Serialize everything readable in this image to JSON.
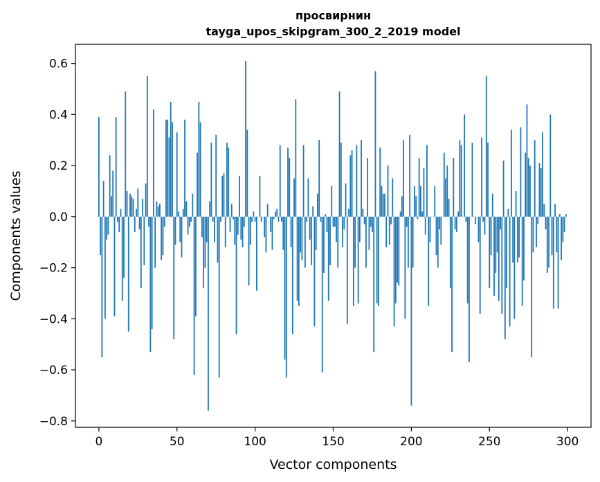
{
  "chart_data": {
    "type": "bar",
    "title": "просвирнин",
    "subtitle": "tayga_upos_skipgram_300_2_2019 model",
    "xlabel": "Vector components",
    "ylabel": "Components values",
    "xlim": [
      -15,
      315
    ],
    "ylim": [
      -0.825,
      0.675
    ],
    "xticks": [
      0,
      50,
      100,
      150,
      200,
      250,
      300
    ],
    "xtick_labels": [
      "0",
      "50",
      "100",
      "150",
      "200",
      "250",
      "300"
    ],
    "yticks": [
      -0.8,
      -0.6,
      -0.4,
      -0.2,
      0.0,
      0.2,
      0.4,
      0.6
    ],
    "ytick_labels": [
      "−0.8",
      "−0.6",
      "−0.4",
      "−0.2",
      "0.0",
      "0.2",
      "0.4",
      "0.6"
    ],
    "grid": false,
    "bar_color": "#1f77b4",
    "x": [
      0,
      1,
      2,
      3,
      4,
      5,
      6,
      7,
      8,
      9,
      10,
      11,
      12,
      13,
      14,
      15,
      16,
      17,
      18,
      19,
      20,
      21,
      22,
      23,
      24,
      25,
      26,
      27,
      28,
      29,
      30,
      31,
      32,
      33,
      34,
      35,
      36,
      37,
      38,
      39,
      40,
      41,
      42,
      43,
      44,
      45,
      46,
      47,
      48,
      49,
      50,
      51,
      52,
      53,
      54,
      55,
      56,
      57,
      58,
      59,
      60,
      61,
      62,
      63,
      64,
      65,
      66,
      67,
      68,
      69,
      70,
      71,
      72,
      73,
      74,
      75,
      76,
      77,
      78,
      79,
      80,
      81,
      82,
      83,
      84,
      85,
      86,
      87,
      88,
      89,
      90,
      91,
      92,
      93,
      94,
      95,
      96,
      97,
      98,
      99,
      100,
      101,
      102,
      103,
      104,
      105,
      106,
      107,
      108,
      109,
      110,
      111,
      112,
      113,
      114,
      115,
      116,
      117,
      118,
      119,
      120,
      121,
      122,
      123,
      124,
      125,
      126,
      127,
      128,
      129,
      130,
      131,
      132,
      133,
      134,
      135,
      136,
      137,
      138,
      139,
      140,
      141,
      142,
      143,
      144,
      145,
      146,
      147,
      148,
      149,
      150,
      151,
      152,
      153,
      154,
      155,
      156,
      157,
      158,
      159,
      160,
      161,
      162,
      163,
      164,
      165,
      166,
      167,
      168,
      169,
      170,
      171,
      172,
      173,
      174,
      175,
      176,
      177,
      178,
      179,
      180,
      181,
      182,
      183,
      184,
      185,
      186,
      187,
      188,
      189,
      190,
      191,
      192,
      193,
      194,
      195,
      196,
      197,
      198,
      199,
      200,
      201,
      202,
      203,
      204,
      205,
      206,
      207,
      208,
      209,
      210,
      211,
      212,
      213,
      214,
      215,
      216,
      217,
      218,
      219,
      220,
      221,
      222,
      223,
      224,
      225,
      226,
      227,
      228,
      229,
      230,
      231,
      232,
      233,
      234,
      235,
      236,
      237,
      238,
      239,
      240,
      241,
      242,
      243,
      244,
      245,
      246,
      247,
      248,
      249,
      250,
      251,
      252,
      253,
      254,
      255,
      256,
      257,
      258,
      259,
      260,
      261,
      262,
      263,
      264,
      265,
      266,
      267,
      268,
      269,
      270,
      271,
      272,
      273,
      274,
      275,
      276,
      277,
      278,
      279,
      280,
      281,
      282,
      283,
      284,
      285,
      286,
      287,
      288,
      289,
      290,
      291,
      292,
      293,
      294,
      295,
      296,
      297,
      298,
      299
    ],
    "values": [
      0.39,
      -0.15,
      -0.55,
      0.14,
      -0.4,
      -0.09,
      -0.07,
      0.24,
      0.08,
      0.18,
      -0.39,
      0.39,
      -0.02,
      -0.06,
      0.03,
      -0.33,
      -0.24,
      0.49,
      0.1,
      -0.45,
      0.09,
      0.08,
      0.07,
      -0.06,
      0.03,
      0.11,
      -0.05,
      -0.28,
      0.07,
      -0.19,
      0.13,
      0.55,
      -0.04,
      -0.53,
      -0.44,
      0.42,
      -0.2,
      0.06,
      0.04,
      0.05,
      -0.17,
      -0.15,
      -0.04,
      0.38,
      0.38,
      0.31,
      0.45,
      0.37,
      -0.48,
      -0.11,
      0.33,
      0.02,
      -0.1,
      -0.16,
      0.03,
      0.38,
      0.06,
      -0.07,
      -0.04,
      -0.02,
      0.09,
      -0.62,
      -0.39,
      0.25,
      0.45,
      0.37,
      -0.08,
      -0.28,
      -0.2,
      -0.1,
      -0.76,
      0.06,
      0.29,
      -0.02,
      -0.1,
      0.32,
      -0.18,
      -0.63,
      -0.02,
      0.16,
      0.17,
      -0.12,
      0.29,
      0.27,
      -0.06,
      0.05,
      -0.01,
      -0.11,
      -0.46,
      -0.07,
      0.16,
      -0.09,
      -0.12,
      -0.04,
      0.61,
      0.34,
      -0.27,
      -0.11,
      -0.02,
      0.02,
      -0.02,
      -0.29,
      0.0,
      0.16,
      -0.02,
      0.0,
      -0.08,
      -0.14,
      0.05,
      0.0,
      -0.06,
      -0.13,
      -0.01,
      0.02,
      0.03,
      -0.02,
      0.28,
      -0.02,
      -0.13,
      -0.56,
      -0.63,
      0.27,
      0.23,
      -0.12,
      -0.46,
      0.15,
      0.46,
      -0.33,
      -0.35,
      -0.14,
      -0.17,
      0.28,
      -0.2,
      -0.02,
      0.15,
      -0.09,
      -0.19,
      0.04,
      -0.43,
      -0.13,
      0.09,
      0.3,
      -0.02,
      -0.61,
      -0.22,
      0.01,
      -0.06,
      -0.33,
      -0.19,
      0.12,
      -0.04,
      -0.04,
      -0.1,
      -0.2,
      0.49,
      0.29,
      -0.12,
      -0.05,
      0.13,
      -0.42,
      0.03,
      0.24,
      0.26,
      -0.35,
      -0.2,
      0.28,
      -0.34,
      -0.1,
      0.3,
      0.03,
      -0.03,
      -0.2,
      0.23,
      -0.13,
      -0.04,
      -0.06,
      -0.53,
      0.57,
      -0.34,
      -0.35,
      0.27,
      0.12,
      0.09,
      0.09,
      -0.12,
      0.2,
      -0.11,
      -0.03,
      0.15,
      -0.43,
      -0.34,
      -0.26,
      -0.27,
      0.02,
      0.08,
      0.3,
      -0.4,
      -0.04,
      -0.2,
      0.32,
      -0.74,
      -0.2,
      0.12,
      0.08,
      -0.01,
      0.23,
      0.12,
      0.02,
      0.19,
      -0.07,
      0.28,
      -0.35,
      -0.1,
      0.0,
      0.0,
      0.12,
      -0.15,
      -0.2,
      -0.05,
      -0.11,
      0.0,
      0.25,
      0.15,
      0.2,
      0.07,
      -0.28,
      -0.53,
      0.23,
      -0.05,
      -0.06,
      0.02,
      0.3,
      0.28,
      0.0,
      0.4,
      -0.02,
      -0.34,
      -0.57,
      0.0,
      0.29,
      0.0,
      -0.03,
      0.0,
      -0.1,
      -0.38,
      0.31,
      -0.02,
      -0.07,
      0.55,
      0.29,
      -0.28,
      -0.15,
      0.09,
      -0.31,
      -0.22,
      -0.14,
      -0.33,
      -0.05,
      -0.38,
      0.22,
      -0.48,
      -0.28,
      0.03,
      -0.43,
      0.34,
      -0.18,
      -0.4,
      0.1,
      -0.18,
      -0.16,
      0.35,
      -0.35,
      -0.25,
      0.25,
      0.44,
      0.23,
      0.2,
      -0.55,
      -0.14,
      0.3,
      -0.12,
      -0.03,
      0.21,
      0.19,
      0.33,
      0.05,
      -0.05,
      -0.22,
      -0.2,
      0.4,
      -0.15,
      -0.36,
      0.05,
      -0.14,
      -0.36,
      0.01,
      -0.17,
      -0.1,
      -0.06,
      0.01
    ]
  }
}
